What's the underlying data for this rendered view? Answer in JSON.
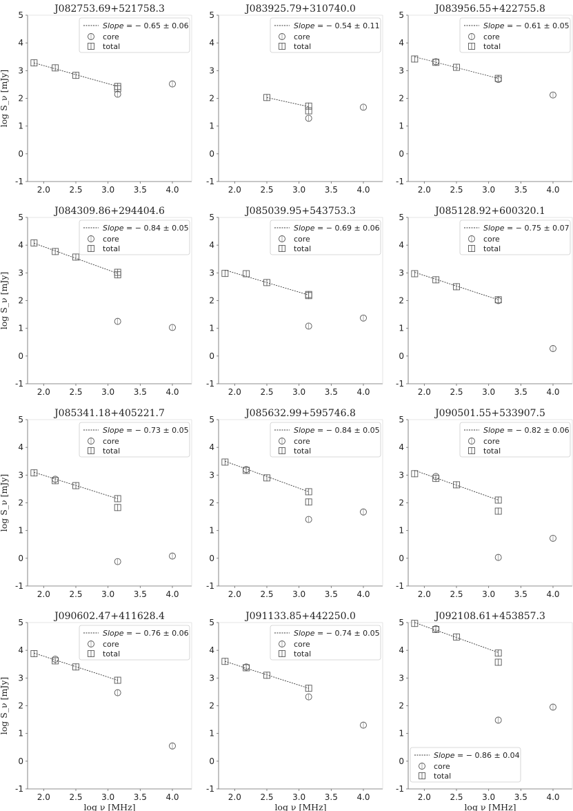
{
  "chart_data": [
    {
      "type": "scatter",
      "title": "J082753.69+521758.3",
      "xlabel": "",
      "ylabel": "log S_ν [mJy]",
      "xticks": [],
      "yticks": [
        "5",
        "4",
        "3",
        "2",
        "1",
        "0",
        "-1"
      ],
      "xlim": [
        1.75,
        4.3
      ],
      "ylim": [
        -1,
        5
      ],
      "legend": {
        "placement": "top-right",
        "fit_prefix": "Slope",
        "fit_value": "= − 0.65 ± 0.06",
        "core": "core",
        "total": "total"
      },
      "total": [
        [
          1.85,
          3.28
        ],
        [
          2.18,
          3.1
        ],
        [
          2.5,
          2.83
        ],
        [
          3.15,
          2.43
        ],
        [
          3.15,
          2.35
        ]
      ],
      "core": [
        [
          3.15,
          2.15
        ],
        [
          4.0,
          2.52
        ]
      ],
      "fit": [
        [
          1.85,
          3.28
        ],
        [
          3.15,
          2.43
        ]
      ]
    },
    {
      "type": "scatter",
      "title": "J083925.79+310740.0",
      "xlabel": "",
      "ylabel": "",
      "xticks": [],
      "yticks": [
        "5",
        "4",
        "3",
        "2",
        "1",
        "0",
        "-1"
      ],
      "xlim": [
        1.75,
        4.3
      ],
      "ylim": [
        -1,
        5
      ],
      "legend": {
        "placement": "top-right",
        "fit_prefix": "Slope",
        "fit_value": "= − 0.54 ± 0.11",
        "core": "core",
        "total": "total"
      },
      "total": [
        [
          2.5,
          2.03
        ],
        [
          3.15,
          1.72
        ],
        [
          3.15,
          1.55
        ]
      ],
      "core": [
        [
          3.15,
          1.28
        ],
        [
          4.0,
          1.68
        ]
      ],
      "fit": [
        [
          2.5,
          2.03
        ],
        [
          3.15,
          1.7
        ]
      ]
    },
    {
      "type": "scatter",
      "title": "J083956.55+422755.8",
      "xlabel": "",
      "ylabel": "",
      "xticks": [],
      "yticks": [
        "5",
        "4",
        "3",
        "2",
        "1",
        "0",
        "-1"
      ],
      "xlim": [
        1.75,
        4.3
      ],
      "ylim": [
        -1,
        5
      ],
      "legend": {
        "placement": "top-right",
        "fit_prefix": "Slope",
        "fit_value": "= − 0.61 ± 0.05",
        "core": "core",
        "total": "total"
      },
      "total": [
        [
          1.85,
          3.42
        ],
        [
          2.18,
          3.3
        ],
        [
          2.5,
          3.12
        ],
        [
          3.15,
          2.72
        ]
      ],
      "core": [
        [
          2.18,
          3.32
        ],
        [
          3.15,
          2.68
        ],
        [
          4.0,
          2.12
        ]
      ],
      "fit": [
        [
          1.85,
          3.5
        ],
        [
          3.15,
          2.72
        ]
      ]
    },
    {
      "type": "scatter",
      "title": "J084309.86+294404.6",
      "xlabel": "",
      "ylabel": "log S_ν [mJy]",
      "xticks": [],
      "yticks": [
        "5",
        "4",
        "3",
        "2",
        "1",
        "0",
        "-1"
      ],
      "xlim": [
        1.75,
        4.3
      ],
      "ylim": [
        -1,
        5
      ],
      "legend": {
        "placement": "top-right",
        "fit_prefix": "Slope",
        "fit_value": "= − 0.84 ± 0.05",
        "core": "core",
        "total": "total"
      },
      "total": [
        [
          1.85,
          4.08
        ],
        [
          2.18,
          3.77
        ],
        [
          2.5,
          3.57
        ],
        [
          3.15,
          3.02
        ],
        [
          3.15,
          2.93
        ]
      ],
      "core": [
        [
          3.15,
          1.25
        ],
        [
          4.0,
          1.03
        ]
      ],
      "fit": [
        [
          1.85,
          4.07
        ],
        [
          3.15,
          2.98
        ]
      ]
    },
    {
      "type": "scatter",
      "title": "J085039.95+543753.3",
      "xlabel": "",
      "ylabel": "",
      "xticks": [],
      "yticks": [
        "5",
        "4",
        "3",
        "2",
        "1",
        "0",
        "-1"
      ],
      "xlim": [
        1.75,
        4.3
      ],
      "ylim": [
        -1,
        5
      ],
      "legend": {
        "placement": "top-right",
        "fit_prefix": "Slope",
        "fit_value": "= − 0.69 ± 0.06",
        "core": "core",
        "total": "total"
      },
      "total": [
        [
          1.85,
          2.98
        ],
        [
          2.18,
          2.97
        ],
        [
          2.5,
          2.65
        ],
        [
          3.15,
          2.22
        ],
        [
          3.15,
          2.18
        ]
      ],
      "core": [
        [
          3.15,
          1.08
        ],
        [
          4.0,
          1.37
        ]
      ],
      "fit": [
        [
          1.85,
          3.1
        ],
        [
          3.15,
          2.2
        ]
      ]
    },
    {
      "type": "scatter",
      "title": "J085128.92+600320.1",
      "xlabel": "",
      "ylabel": "",
      "xticks": [],
      "yticks": [
        "5",
        "4",
        "3",
        "2",
        "1",
        "0",
        "-1"
      ],
      "xlim": [
        1.75,
        4.3
      ],
      "ylim": [
        -1,
        5
      ],
      "legend": {
        "placement": "top-right",
        "fit_prefix": "Slope",
        "fit_value": "= − 0.75 ± 0.07",
        "core": "core",
        "total": "total"
      },
      "total": [
        [
          1.85,
          2.97
        ],
        [
          2.18,
          2.75
        ],
        [
          2.5,
          2.5
        ],
        [
          3.15,
          2.03
        ]
      ],
      "core": [
        [
          3.15,
          2.0
        ],
        [
          4.0,
          0.27
        ]
      ],
      "fit": [
        [
          1.85,
          3.02
        ],
        [
          3.15,
          2.03
        ]
      ]
    },
    {
      "type": "scatter",
      "title": "J085341.18+405221.7",
      "xlabel": "",
      "ylabel": "log S_ν [mJy]",
      "xticks": [],
      "yticks": [
        "5",
        "4",
        "3",
        "2",
        "1",
        "0",
        "-1"
      ],
      "xlim": [
        1.75,
        4.3
      ],
      "ylim": [
        -1,
        5
      ],
      "legend": {
        "placement": "top-right",
        "fit_prefix": "Slope",
        "fit_value": "= − 0.73 ± 0.05",
        "core": "core",
        "total": "total"
      },
      "total": [
        [
          1.85,
          3.08
        ],
        [
          2.18,
          2.8
        ],
        [
          2.5,
          2.62
        ],
        [
          3.15,
          2.15
        ],
        [
          3.15,
          1.83
        ]
      ],
      "core": [
        [
          2.18,
          2.85
        ],
        [
          3.15,
          -0.12
        ],
        [
          4.0,
          0.08
        ]
      ],
      "fit": [
        [
          1.85,
          3.1
        ],
        [
          3.15,
          2.15
        ]
      ]
    },
    {
      "type": "scatter",
      "title": "J085632.99+595746.8",
      "xlabel": "",
      "ylabel": "",
      "xticks": [],
      "yticks": [
        "5",
        "4",
        "3",
        "2",
        "1",
        "0",
        "-1"
      ],
      "xlim": [
        1.75,
        4.3
      ],
      "ylim": [
        -1,
        5
      ],
      "legend": {
        "placement": "top-right",
        "fit_prefix": "Slope",
        "fit_value": "= − 0.84 ± 0.05",
        "core": "core",
        "total": "total"
      },
      "total": [
        [
          1.85,
          3.47
        ],
        [
          2.18,
          3.17
        ],
        [
          2.5,
          2.9
        ],
        [
          3.15,
          2.4
        ],
        [
          3.15,
          2.03
        ]
      ],
      "core": [
        [
          2.18,
          3.2
        ],
        [
          3.15,
          1.4
        ],
        [
          4.0,
          1.67
        ]
      ],
      "fit": [
        [
          1.85,
          3.5
        ],
        [
          3.15,
          2.4
        ]
      ]
    },
    {
      "type": "scatter",
      "title": "J090501.55+533907.5",
      "xlabel": "",
      "ylabel": "",
      "xticks": [],
      "yticks": [
        "5",
        "4",
        "3",
        "2",
        "1",
        "0",
        "-1"
      ],
      "xlim": [
        1.75,
        4.3
      ],
      "ylim": [
        -1,
        5
      ],
      "legend": {
        "placement": "top-right",
        "fit_prefix": "Slope",
        "fit_value": "= − 0.82 ± 0.06",
        "core": "core",
        "total": "total"
      },
      "total": [
        [
          1.85,
          3.05
        ],
        [
          2.18,
          2.88
        ],
        [
          2.5,
          2.65
        ],
        [
          3.15,
          2.1
        ],
        [
          3.15,
          1.7
        ]
      ],
      "core": [
        [
          2.18,
          2.95
        ],
        [
          3.15,
          0.03
        ],
        [
          4.0,
          0.72
        ]
      ],
      "fit": [
        [
          1.85,
          3.17
        ],
        [
          3.15,
          2.1
        ]
      ]
    },
    {
      "type": "scatter",
      "title": "J090602.47+411628.4",
      "xlabel": "log ν [MHz]",
      "ylabel": "log S_ν [mJy]",
      "xticks": [
        "2.0",
        "2.5",
        "3.0",
        "3.5",
        "4.0"
      ],
      "yticks": [
        "5",
        "4",
        "3",
        "2",
        "1",
        "0",
        "-1"
      ],
      "xlim": [
        1.75,
        4.3
      ],
      "ylim": [
        -1,
        5
      ],
      "legend": {
        "placement": "top-right",
        "fit_prefix": "Slope",
        "fit_value": "= − 0.76 ± 0.06",
        "core": "core",
        "total": "total"
      },
      "total": [
        [
          1.85,
          3.88
        ],
        [
          2.18,
          3.62
        ],
        [
          2.5,
          3.4
        ],
        [
          3.15,
          2.92
        ]
      ],
      "core": [
        [
          2.18,
          3.68
        ],
        [
          3.15,
          2.47
        ],
        [
          4.0,
          0.55
        ]
      ],
      "fit": [
        [
          1.85,
          3.9
        ],
        [
          3.15,
          2.92
        ]
      ]
    },
    {
      "type": "scatter",
      "title": "J091133.85+442250.0",
      "xlabel": "log ν [MHz]",
      "ylabel": "",
      "xticks": [
        "2.0",
        "2.5",
        "3.0",
        "3.5",
        "4.0"
      ],
      "yticks": [
        "5",
        "4",
        "3",
        "2",
        "1",
        "0",
        "-1"
      ],
      "xlim": [
        1.75,
        4.3
      ],
      "ylim": [
        -1,
        5
      ],
      "legend": {
        "placement": "top-right",
        "fit_prefix": "Slope",
        "fit_value": "= − 0.74 ± 0.05",
        "core": "core",
        "total": "total"
      },
      "total": [
        [
          1.85,
          3.6
        ],
        [
          2.18,
          3.37
        ],
        [
          2.5,
          3.1
        ],
        [
          3.15,
          2.63
        ]
      ],
      "core": [
        [
          2.18,
          3.4
        ],
        [
          3.15,
          2.32
        ],
        [
          4.0,
          1.3
        ]
      ],
      "fit": [
        [
          1.85,
          3.6
        ],
        [
          3.15,
          2.63
        ]
      ]
    },
    {
      "type": "scatter",
      "title": "J092108.61+453857.3",
      "xlabel": "log ν [MHz]",
      "ylabel": "",
      "xticks": [
        "2.0",
        "2.5",
        "3.0",
        "3.5",
        "4.0"
      ],
      "yticks": [
        "5",
        "4",
        "3",
        "2",
        "1",
        "0",
        "-1"
      ],
      "xlim": [
        1.75,
        4.3
      ],
      "ylim": [
        -1,
        5
      ],
      "legend": {
        "placement": "bottom-left",
        "fit_prefix": "Slope",
        "fit_value": "= − 0.86 ± 0.04",
        "core": "core",
        "total": "total"
      },
      "total": [
        [
          1.85,
          4.97
        ],
        [
          2.18,
          4.75
        ],
        [
          2.5,
          4.48
        ],
        [
          3.15,
          3.9
        ],
        [
          3.15,
          3.57
        ]
      ],
      "core": [
        [
          2.18,
          4.78
        ],
        [
          3.15,
          1.48
        ],
        [
          4.0,
          1.95
        ]
      ],
      "fit": [
        [
          1.85,
          5.0
        ],
        [
          3.15,
          3.92
        ]
      ]
    }
  ]
}
